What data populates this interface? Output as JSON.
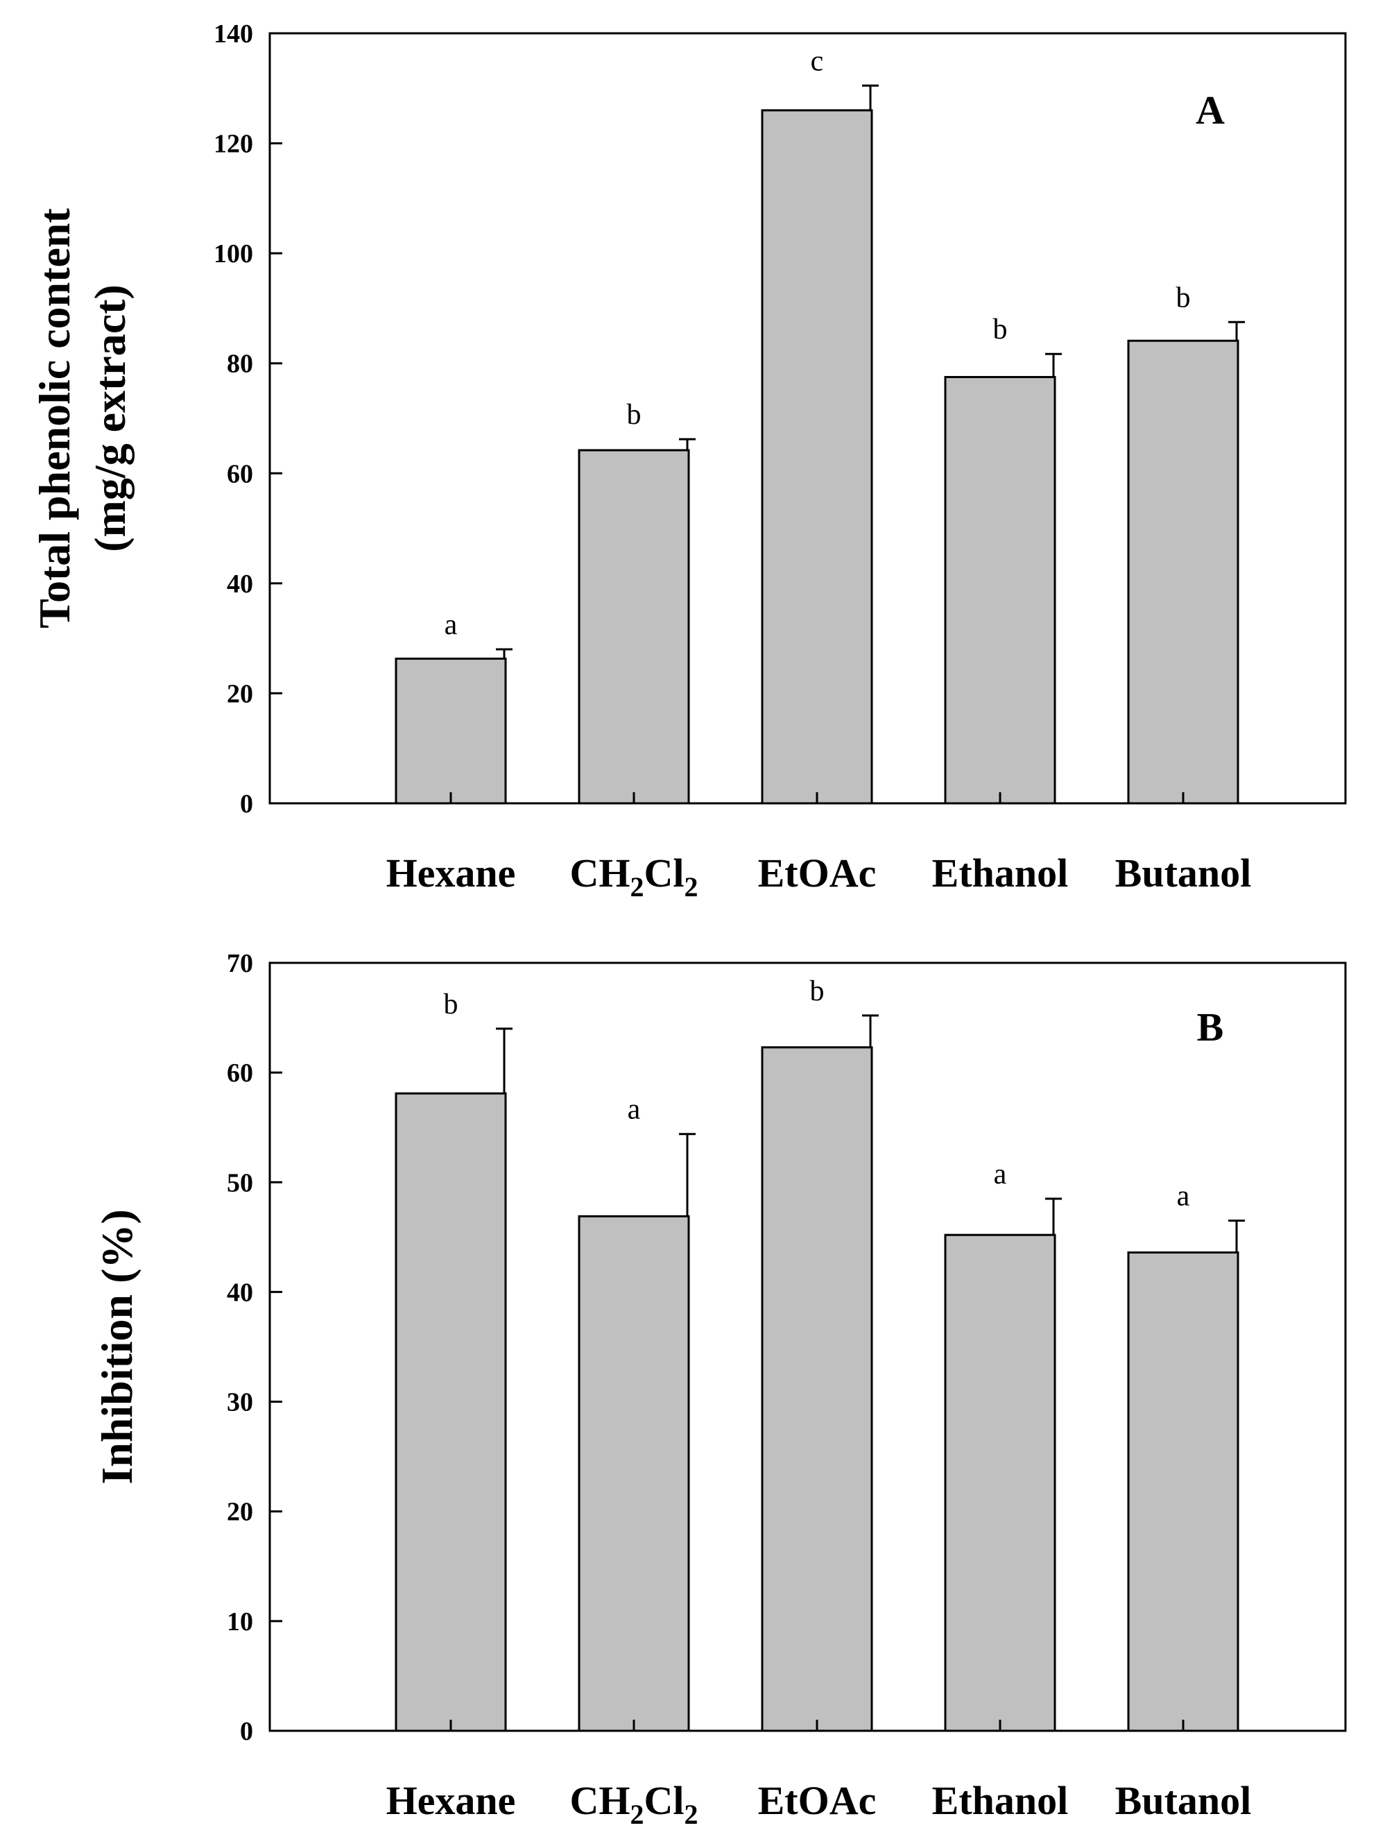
{
  "colors": {
    "bar_fill": "#c0c0c0",
    "bar_stroke": "#000000",
    "background": "#ffffff"
  },
  "chart_data": [
    {
      "type": "bar",
      "panel": "A",
      "categories": [
        "Hexane",
        "CH2Cl2",
        "EtOAc",
        "Ethanol",
        "Butanol"
      ],
      "category_display": [
        {
          "main": "Hexane",
          "parts": []
        },
        {
          "main": "CH",
          "parts": [
            {
              "sub": "2"
            },
            {
              "text": "Cl"
            },
            {
              "sub": "2"
            }
          ]
        },
        {
          "main": "EtOAc",
          "parts": []
        },
        {
          "main": "Ethanol",
          "parts": []
        },
        {
          "main": "Butanol",
          "parts": []
        }
      ],
      "values": [
        26.3,
        64.2,
        126.0,
        77.5,
        84.1
      ],
      "errors": [
        1.7,
        2.0,
        4.5,
        4.2,
        3.4
      ],
      "significance": [
        "a",
        "b",
        "c",
        "b",
        "b"
      ],
      "ylabel_lines": [
        "Total phenolic content",
        "(mg/g extract)"
      ],
      "xlabel": "",
      "ylim": [
        0,
        140
      ],
      "yticks": [
        0,
        20,
        40,
        60,
        80,
        100,
        120,
        140
      ]
    },
    {
      "type": "bar",
      "panel": "B",
      "categories": [
        "Hexane",
        "CH2Cl2",
        "EtOAc",
        "Ethanol",
        "Butanol"
      ],
      "category_display": [
        {
          "main": "Hexane",
          "parts": []
        },
        {
          "main": "CH",
          "parts": [
            {
              "sub": "2"
            },
            {
              "text": "Cl"
            },
            {
              "sub": "2"
            }
          ]
        },
        {
          "main": "EtOAc",
          "parts": []
        },
        {
          "main": "Ethanol",
          "parts": []
        },
        {
          "main": "Butanol",
          "parts": []
        }
      ],
      "values": [
        58.1,
        46.9,
        62.3,
        45.2,
        43.6
      ],
      "errors": [
        5.9,
        7.5,
        2.9,
        3.3,
        2.9
      ],
      "significance": [
        "b",
        "a",
        "b",
        "a",
        "a"
      ],
      "ylabel_lines": [
        "Inhibition (%)"
      ],
      "xlabel": "",
      "ylim": [
        0,
        70
      ],
      "yticks": [
        0,
        10,
        20,
        30,
        40,
        50,
        60,
        70
      ]
    }
  ]
}
